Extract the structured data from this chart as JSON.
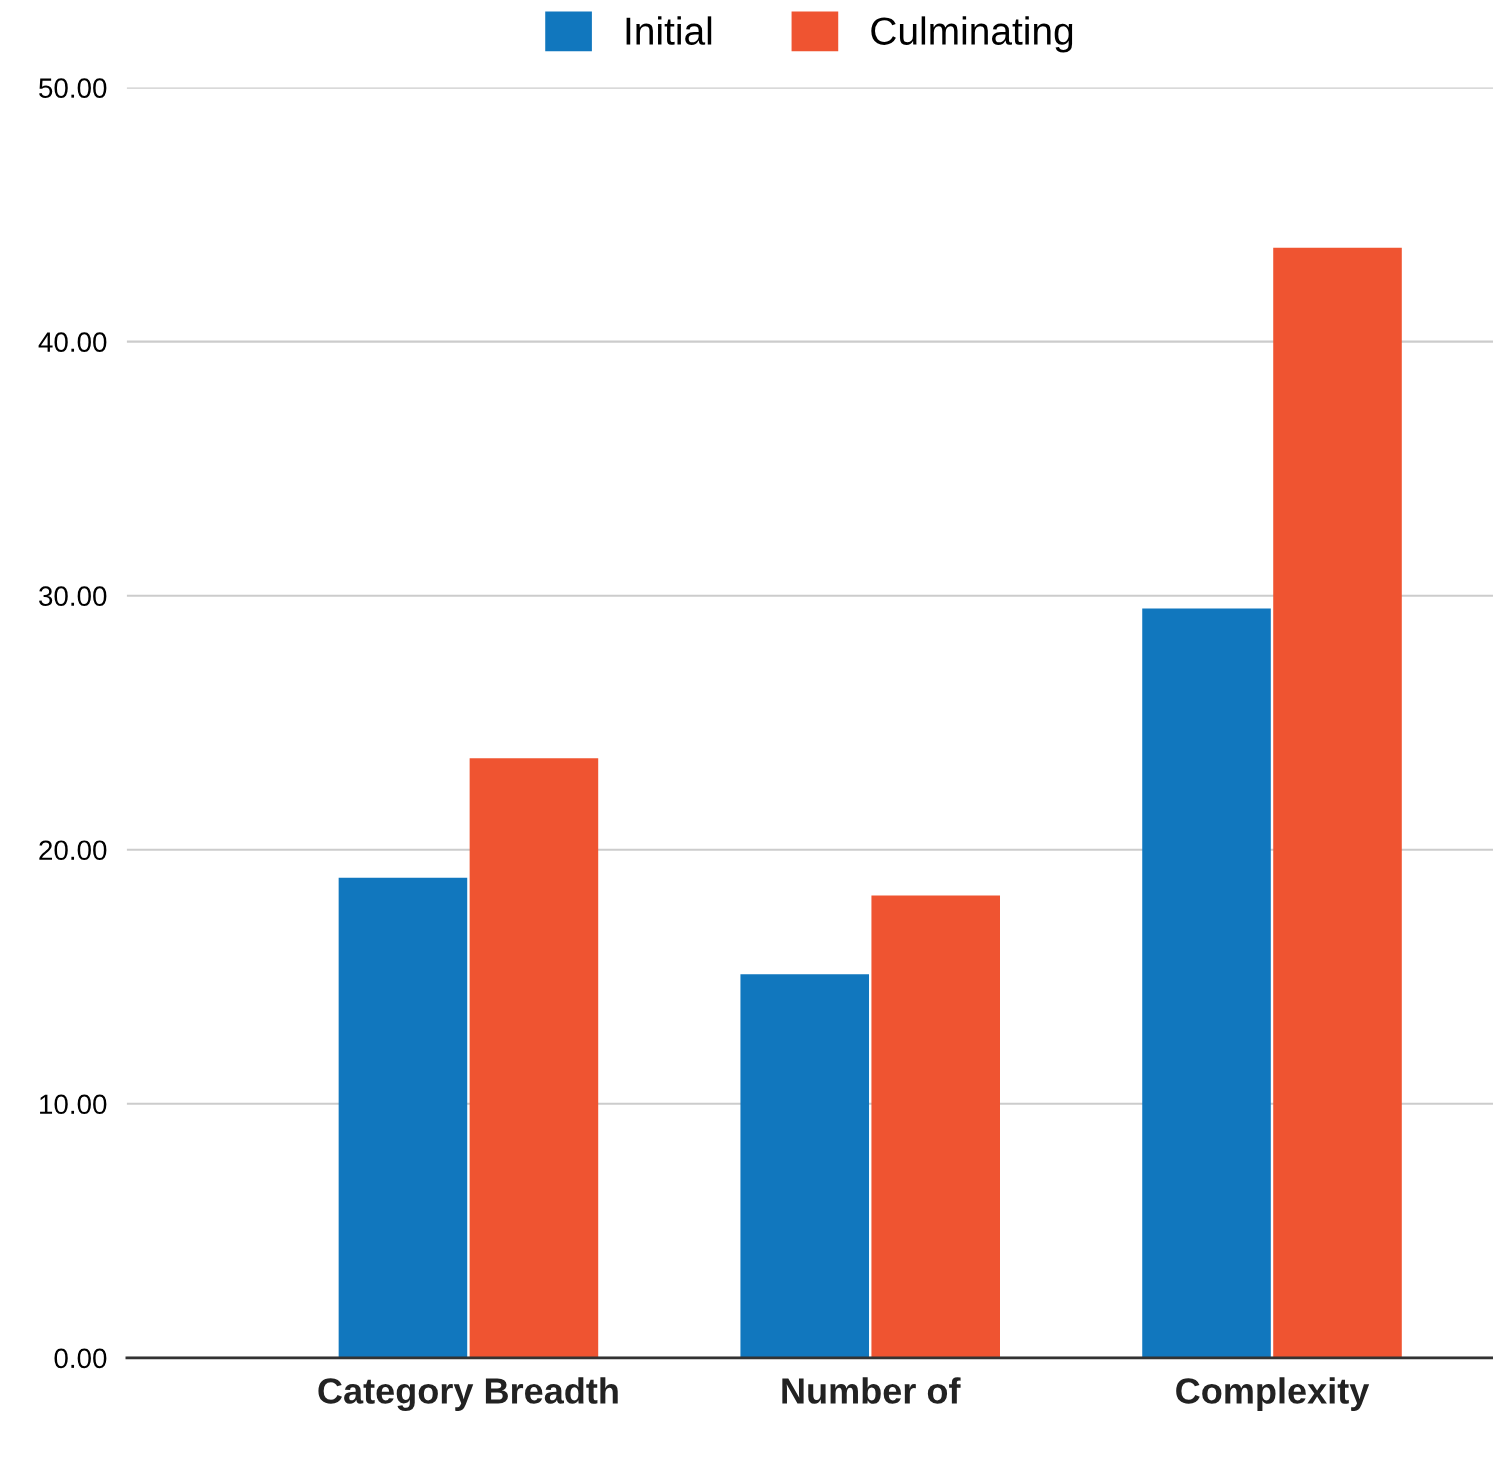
{
  "chart_data": {
    "type": "bar",
    "categories": [
      "Category Breadth",
      "Number of",
      "Complexity"
    ],
    "series": [
      {
        "name": "Initial",
        "color": "#1177be",
        "values": [
          18.9,
          15.1,
          29.5
        ]
      },
      {
        "name": "Culminating",
        "color": "#ef5431",
        "values": [
          23.6,
          18.2,
          43.7
        ]
      }
    ],
    "ylim": [
      0,
      50
    ],
    "yticks": [
      {
        "value": 0,
        "label": "0.00"
      },
      {
        "value": 10,
        "label": "10.00"
      },
      {
        "value": 20,
        "label": "20.00"
      },
      {
        "value": 30,
        "label": "30.00"
      },
      {
        "value": 40,
        "label": "40.00"
      },
      {
        "value": 50,
        "label": "50.00"
      }
    ],
    "grid": "y",
    "legend": "top"
  }
}
